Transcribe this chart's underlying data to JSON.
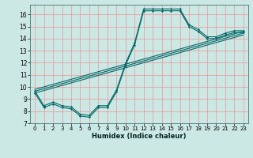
{
  "title": "",
  "xlabel": "Humidex (Indice chaleur)",
  "bg_color": "#cce8e4",
  "grid_color": "#e8a0a0",
  "line_color": "#006868",
  "xlim": [
    -0.5,
    23.5
  ],
  "ylim": [
    7.0,
    16.8
  ],
  "yticks": [
    7,
    8,
    9,
    10,
    11,
    12,
    13,
    14,
    15,
    16
  ],
  "xticks": [
    0,
    1,
    2,
    3,
    4,
    5,
    6,
    7,
    8,
    9,
    10,
    11,
    12,
    13,
    14,
    15,
    16,
    17,
    18,
    19,
    20,
    21,
    22,
    23
  ],
  "jagged1_x": [
    0,
    1,
    2,
    3,
    4,
    5,
    6,
    7,
    8,
    9,
    10,
    11,
    12,
    13,
    14,
    15,
    16,
    17,
    18,
    19,
    20,
    21,
    22,
    23
  ],
  "jagged1_y": [
    9.5,
    8.3,
    8.6,
    8.3,
    8.2,
    7.6,
    7.5,
    8.3,
    8.3,
    9.6,
    11.8,
    13.5,
    16.3,
    16.3,
    16.3,
    16.3,
    16.3,
    15.0,
    14.6,
    14.0,
    14.0,
    14.3,
    14.5,
    14.5
  ],
  "jagged2_x": [
    0,
    1,
    2,
    3,
    4,
    5,
    6,
    7,
    8,
    9,
    10,
    11,
    12,
    13,
    14,
    15,
    16,
    17,
    18,
    19,
    20,
    21,
    22,
    23
  ],
  "jagged2_y": [
    9.65,
    8.45,
    8.75,
    8.45,
    8.35,
    7.75,
    7.65,
    8.45,
    8.45,
    9.75,
    11.95,
    13.65,
    16.45,
    16.45,
    16.45,
    16.45,
    16.45,
    15.15,
    14.75,
    14.15,
    14.15,
    14.45,
    14.65,
    14.65
  ],
  "straight_lines": [
    {
      "x0": 0,
      "y0": 9.5,
      "x1": 23,
      "y1": 14.3
    },
    {
      "x0": 0,
      "y0": 9.65,
      "x1": 23,
      "y1": 14.45
    },
    {
      "x0": 0,
      "y0": 9.8,
      "x1": 23,
      "y1": 14.6
    }
  ]
}
